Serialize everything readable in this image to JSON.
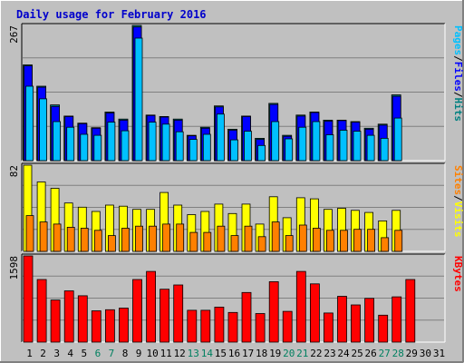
{
  "title": "Daily usage for February 2016",
  "days": [
    "1",
    "2",
    "3",
    "4",
    "5",
    "6",
    "7",
    "8",
    "9",
    "10",
    "11",
    "12",
    "13",
    "14",
    "15",
    "16",
    "17",
    "18",
    "19",
    "20",
    "21",
    "22",
    "23",
    "24",
    "25",
    "26",
    "27",
    "28",
    "29",
    "30",
    "31"
  ],
  "weekend_days": [
    6,
    7,
    13,
    14,
    20,
    21,
    27,
    28
  ],
  "colors": {
    "background": "#c0c0c0",
    "title": "#0000cc",
    "pages": "#00c0ff",
    "files": "#0000ff",
    "hits": "#008080",
    "sites": "#ff8000",
    "visits": "#ffff00",
    "kbytes": "#ff0000",
    "weekday": "#000000",
    "weekend": "#008060"
  },
  "chart_data": [
    {
      "type": "bar",
      "panel": "hits-files-pages",
      "y_max_label": "267",
      "ylim": [
        0,
        267
      ],
      "right_labels": [
        {
          "text": "Pages",
          "color": "#00c0ff"
        },
        {
          "text": "/",
          "color": "#000000"
        },
        {
          "text": "Files",
          "color": "#0000ff"
        },
        {
          "text": "/",
          "color": "#000000"
        },
        {
          "text": "Hits",
          "color": "#008080"
        }
      ],
      "series": [
        {
          "key": "hits",
          "values": [
            189,
            147,
            110,
            88,
            74,
            65,
            96,
            82,
            267,
            90,
            87,
            82,
            50,
            66,
            108,
            62,
            88,
            44,
            113,
            50,
            90,
            96,
            80,
            80,
            77,
            64,
            72,
            130,
            0
          ]
        },
        {
          "key": "files",
          "values": [
            187,
            145,
            107,
            87,
            73,
            64,
            94,
            80,
            264,
            89,
            86,
            80,
            49,
            64,
            106,
            60,
            87,
            42,
            111,
            48,
            88,
            95,
            78,
            79,
            76,
            62,
            70,
            127,
            0
          ]
        },
        {
          "key": "pages",
          "values": [
            147,
            122,
            77,
            66,
            52,
            50,
            76,
            59,
            242,
            76,
            72,
            57,
            42,
            52,
            92,
            41,
            58,
            30,
            77,
            43,
            66,
            77,
            51,
            60,
            58,
            50,
            44,
            84,
            0
          ]
        }
      ]
    },
    {
      "type": "bar",
      "panel": "visits-sites",
      "y_max_label": "82",
      "ylim": [
        0,
        82
      ],
      "right_labels": [
        {
          "text": "Sites",
          "color": "#ff8000"
        },
        {
          "text": "/",
          "color": "#000000"
        },
        {
          "text": "Visits",
          "color": "#ffff00"
        }
      ],
      "series": [
        {
          "key": "visits",
          "values": [
            82,
            66,
            60,
            46,
            42,
            38,
            44,
            43,
            40,
            40,
            56,
            44,
            35,
            38,
            45,
            36,
            45,
            26,
            52,
            32,
            51,
            50,
            40,
            41,
            39,
            37,
            29,
            39,
            0
          ]
        },
        {
          "key": "sites",
          "values": [
            34,
            28,
            26,
            23,
            22,
            20,
            15,
            22,
            24,
            24,
            26,
            26,
            18,
            18,
            24,
            15,
            24,
            14,
            28,
            15,
            25,
            22,
            20,
            20,
            21,
            21,
            13,
            20,
            0
          ]
        }
      ]
    },
    {
      "type": "bar",
      "panel": "kbytes",
      "y_max_label": "1598",
      "ylim": [
        0,
        1598
      ],
      "right_labels": [
        {
          "text": "KBytes",
          "color": "#ff0000"
        }
      ],
      "series": [
        {
          "key": "kbytes",
          "values": [
            1598,
            1160,
            780,
            950,
            860,
            580,
            600,
            630,
            1160,
            1310,
            980,
            1060,
            590,
            590,
            650,
            550,
            920,
            530,
            1120,
            570,
            1310,
            1080,
            540,
            850,
            690,
            810,
            500,
            840,
            1160
          ]
        }
      ]
    }
  ]
}
